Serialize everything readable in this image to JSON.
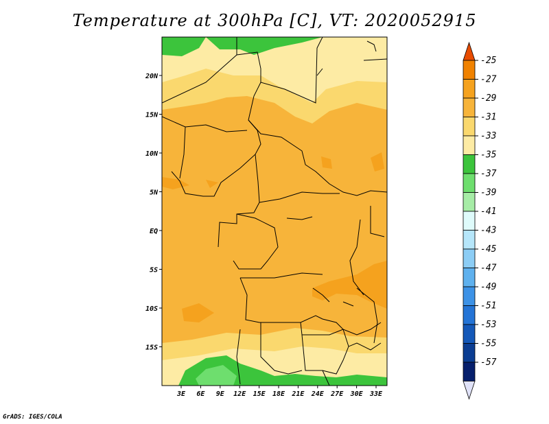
{
  "chart_data": {
    "type": "heatmap",
    "title": "Temperature at 300hPa [C], VT: 2020052915",
    "xlabel": "",
    "ylabel": "",
    "x_ticks": [
      "3E",
      "6E",
      "9E",
      "12E",
      "15E",
      "18E",
      "21E",
      "24E",
      "27E",
      "30E",
      "33E"
    ],
    "y_ticks": [
      "20N",
      "15N",
      "10N",
      "5N",
      "EQ",
      "5S",
      "10S",
      "15S"
    ],
    "colorbar_levels": [
      "-25",
      "-27",
      "-29",
      "-31",
      "-33",
      "-35",
      "-37",
      "-39",
      "-41",
      "-43",
      "-45",
      "-47",
      "-49",
      "-51",
      "-53",
      "-55",
      "-57"
    ],
    "colorbar_colors": [
      "#e84c00",
      "#f08200",
      "#f5a21e",
      "#f7b43a",
      "#fad86e",
      "#fdeba4",
      "#3cc43c",
      "#6ede6e",
      "#a6eca6",
      "#dffbfb",
      "#b6e6fa",
      "#8ccdf5",
      "#5fb1ee",
      "#3d92e6",
      "#2474d6",
      "#1458b8",
      "#0b3d92",
      "#061f6c",
      "#e0e2f8"
    ],
    "legend_position": "right"
  },
  "footer": "GrADS: IGES/COLA"
}
